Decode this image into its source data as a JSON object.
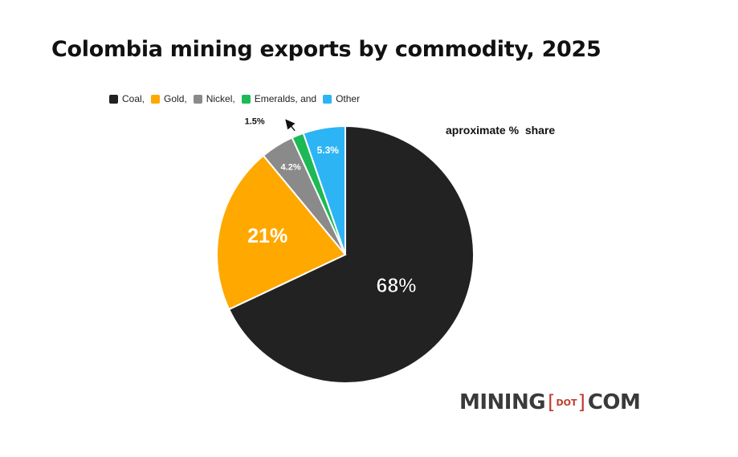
{
  "chart_data": {
    "type": "pie",
    "title": "Colombia mining exports by commodity, 2025",
    "annotation": "aproximate %  share",
    "legend_position": "top-left",
    "slices": [
      {
        "name": "Coal,",
        "value": 68,
        "label": "68%",
        "color": "#222222"
      },
      {
        "name": "Gold,",
        "value": 21,
        "label": "21%",
        "color": "#ffa800"
      },
      {
        "name": "Nickel,",
        "value": 4.2,
        "label": "4.2%",
        "color": "#8a8a8a"
      },
      {
        "name": "Emeralds, and",
        "value": 1.5,
        "label": "1.5%",
        "color": "#1db954"
      },
      {
        "name": "Other",
        "value": 5.3,
        "label": "5.3%",
        "color": "#2db4f5"
      }
    ]
  },
  "logo": {
    "left": "MINING",
    "open_bracket": "[",
    "middle": "DOT",
    "close_bracket": "]",
    "right": "COM"
  }
}
